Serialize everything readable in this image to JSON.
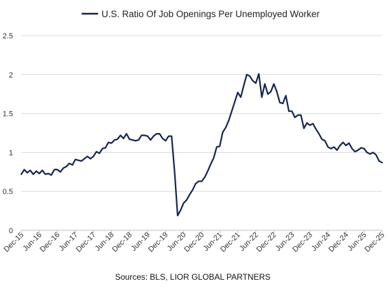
{
  "chart_data": {
    "type": "line",
    "series": [
      {
        "name": "U.S. Ratio Of Job Openings Per Unemployed Worker",
        "color": "#14244f",
        "values": [
          0.72,
          0.78,
          0.74,
          0.77,
          0.72,
          0.76,
          0.73,
          0.77,
          0.72,
          0.73,
          0.71,
          0.78,
          0.78,
          0.75,
          0.8,
          0.82,
          0.86,
          0.84,
          0.91,
          0.9,
          0.89,
          0.92,
          0.95,
          0.92,
          0.95,
          1.01,
          0.99,
          1.05,
          1.06,
          1.13,
          1.12,
          1.16,
          1.17,
          1.22,
          1.18,
          1.24,
          1.17,
          1.16,
          1.15,
          1.16,
          1.22,
          1.22,
          1.21,
          1.16,
          1.21,
          1.24,
          1.24,
          1.18,
          1.15,
          1.21,
          1.21,
          0.75,
          0.19,
          0.26,
          0.35,
          0.39,
          0.46,
          0.52,
          0.6,
          0.63,
          0.63,
          0.68,
          0.76,
          0.85,
          0.93,
          1.07,
          1.08,
          1.26,
          1.32,
          1.41,
          1.53,
          1.65,
          1.77,
          1.71,
          1.86,
          2.0,
          1.98,
          1.92,
          1.89,
          2.01,
          1.71,
          1.88,
          1.75,
          1.78,
          1.88,
          1.78,
          1.64,
          1.63,
          1.73,
          1.53,
          1.53,
          1.45,
          1.48,
          1.48,
          1.31,
          1.38,
          1.35,
          1.37,
          1.3,
          1.24,
          1.17,
          1.15,
          1.07,
          1.05,
          1.07,
          1.03,
          1.09,
          1.13,
          1.09,
          1.12,
          1.05,
          1.01,
          1.03,
          1.06,
          1.05,
          1.0,
          0.98,
          1.0,
          0.97,
          0.89,
          0.87
        ]
      }
    ],
    "x_tick_labels": [
      "Dec-15",
      "Jun-16",
      "Dec-16",
      "Jun-17",
      "Dec-17",
      "Jun-18",
      "Dec-18",
      "Jun-19",
      "Dec-19",
      "Jun-20",
      "Dec-20",
      "Jun-21",
      "Dec-21",
      "Jun-22",
      "Dec-22",
      "Jun-23",
      "Dec-23",
      "Jun-24",
      "Dec-24",
      "Jun-25",
      "Dec-25"
    ],
    "y_tick_labels": [
      "0",
      "0.5",
      "1",
      "1.5",
      "2",
      "2.5"
    ],
    "ylim": [
      0,
      2.5
    ],
    "grid": "horizontal",
    "legend": "top"
  },
  "footer": {
    "source": "Sources: BLS, LIOR GLOBAL PARTNERS"
  }
}
